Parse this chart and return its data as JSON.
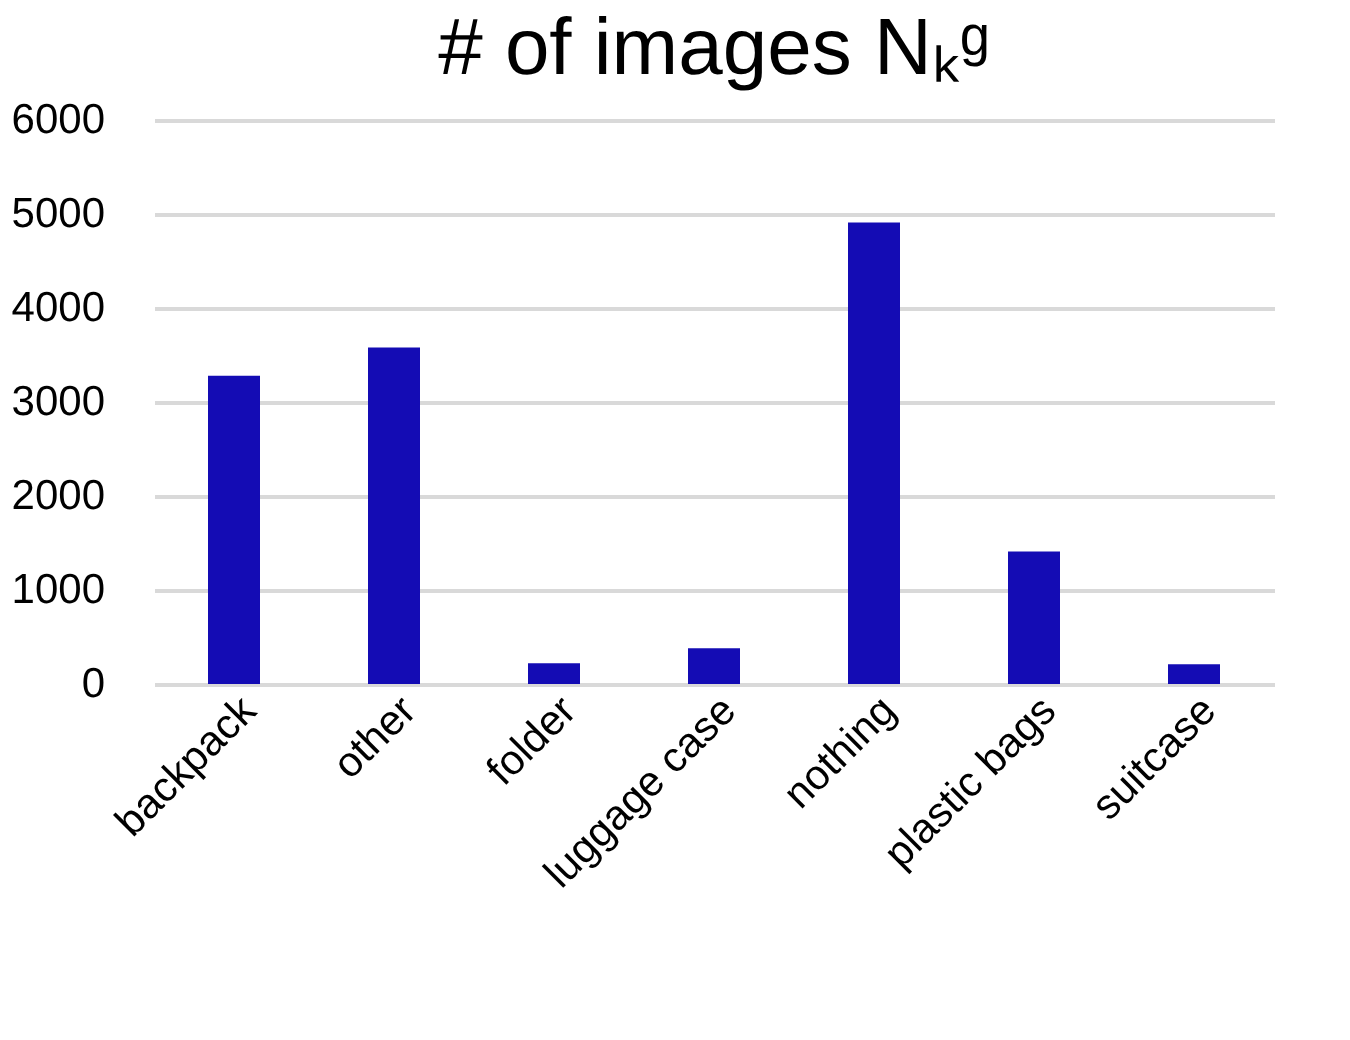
{
  "chart_data": {
    "type": "bar",
    "title": "# of images  Nₖᵍ",
    "categories": [
      "backpack",
      "other",
      "folder",
      "luggage case",
      "nothing",
      "plastic bags",
      "suitcase"
    ],
    "values": [
      3280,
      3580,
      220,
      380,
      4910,
      1410,
      210
    ],
    "color": "#140cb4",
    "ylim": [
      0,
      6000
    ],
    "yticks": [
      0,
      1000,
      2000,
      3000,
      4000,
      5000,
      6000
    ],
    "grid": "y"
  }
}
